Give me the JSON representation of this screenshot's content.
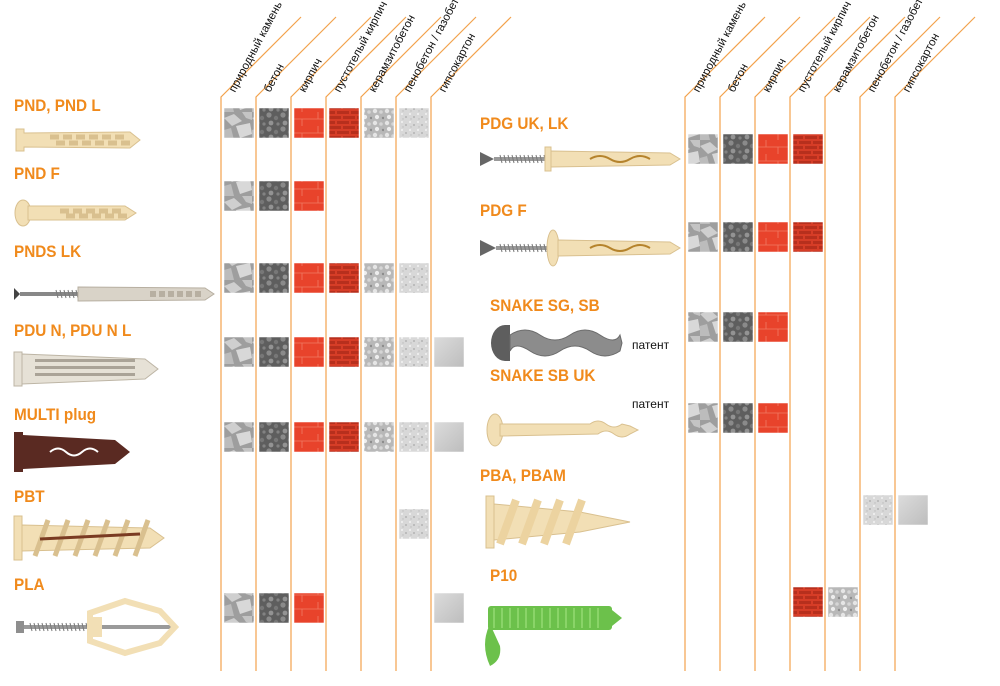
{
  "materials": [
    {
      "key": "stone",
      "label": "природный камень"
    },
    {
      "key": "concrete",
      "label": "бетон"
    },
    {
      "key": "brick",
      "label": "кирпич"
    },
    {
      "key": "hollow",
      "label": "пустотелый кирпич"
    },
    {
      "key": "claydite",
      "label": "керамзитобетон"
    },
    {
      "key": "foam",
      "label": "пенобетон / газобетон"
    },
    {
      "key": "drywall",
      "label": "гипсокартон"
    }
  ],
  "colors": {
    "accent": "#f08a1c",
    "line": "#f3a24c",
    "stone": "#a9a9a9",
    "concrete": "#6b6b6b",
    "brick": "#e8432b",
    "hollow": "#d9412a",
    "claydite": "#bdbdbd",
    "foam": "#d0d0d0",
    "drywall": "#cfcfcf",
    "plastic": "#f2dfb5",
    "green": "#6cc14b",
    "brown": "#5a2a22"
  },
  "left_products": [
    {
      "name": "PND, PND L",
      "image": "nylon-expansion-plug",
      "materials": [
        "stone",
        "concrete",
        "brick",
        "hollow",
        "claydite",
        "foam"
      ]
    },
    {
      "name": "PND F",
      "image": "flanged-expansion-plug",
      "materials": [
        "stone",
        "concrete",
        "brick"
      ]
    },
    {
      "name": "PNDS LK",
      "image": "plug-with-screw",
      "materials": [
        "stone",
        "concrete",
        "brick",
        "hollow",
        "claydite",
        "foam"
      ]
    },
    {
      "name": "PDU N, PDU N L",
      "image": "universal-plug",
      "materials": [
        "stone",
        "concrete",
        "brick",
        "hollow",
        "claydite",
        "foam",
        "drywall"
      ]
    },
    {
      "name": "MULTI plug",
      "image": "brown-multi-plug",
      "materials": [
        "stone",
        "concrete",
        "brick",
        "hollow",
        "claydite",
        "foam",
        "drywall"
      ]
    },
    {
      "name": "PBT",
      "image": "aerated-concrete-spiral-plug",
      "materials": [
        "foam"
      ]
    },
    {
      "name": "PLA",
      "image": "butterfly-toggle-anchor",
      "materials": [
        "stone",
        "concrete",
        "brick",
        "drywall"
      ]
    }
  ],
  "right_products": [
    {
      "name": "PDG UK, LK",
      "patent": "",
      "image": "frame-plug-with-screw",
      "materials": [
        "stone",
        "concrete",
        "brick",
        "hollow"
      ]
    },
    {
      "name": "PDG F",
      "patent": "",
      "image": "frame-plug-flanged",
      "materials": [
        "stone",
        "concrete",
        "brick",
        "hollow"
      ]
    },
    {
      "name": "SNAKE SG, SB",
      "patent": "патент",
      "image": "metal-snake-anchor",
      "materials": [
        "stone",
        "concrete",
        "brick"
      ]
    },
    {
      "name": "SNAKE SB UK",
      "patent": "патент",
      "image": "nylon-snake-anchor",
      "materials": [
        "stone",
        "concrete",
        "brick"
      ]
    },
    {
      "name": "PBA, PBAM",
      "patent": "",
      "image": "drywall-self-drill-anchor",
      "materials": [
        "foam",
        "drywall"
      ]
    },
    {
      "name": "P10",
      "patent": "",
      "image": "green-injection-sleeve",
      "materials": [
        "hollow",
        "claydite"
      ]
    }
  ]
}
